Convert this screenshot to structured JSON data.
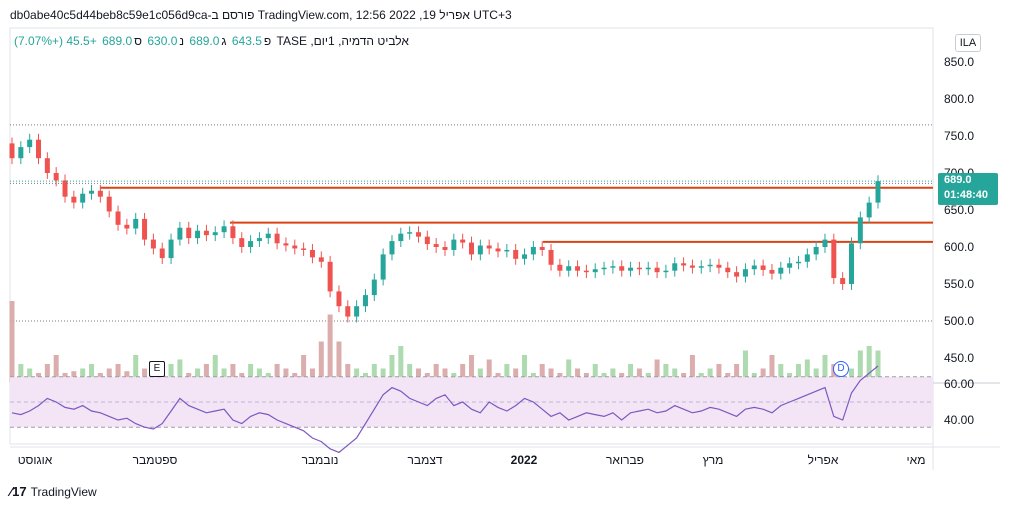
{
  "header": {
    "title": "db0abe40c5d44beb8c59e1c056d9ca-פורסם ב TradingView.com, 12:56 2022 ,אפריל 19 UTC+3"
  },
  "legend": {
    "name": "אלביט הדמיה, 1יום, TASE",
    "o_label": "פ",
    "o_val": "643.5",
    "h_label": "ג",
    "h_val": "689.0",
    "l_label": "נ",
    "l_val": "630.0",
    "c_label": "ס",
    "c_val": "689.0",
    "change": "+45.5 (+7.07%)"
  },
  "symbol_box": "ILA",
  "price_tag": {
    "price": "689.0",
    "countdown": "01:48:40"
  },
  "markers": {
    "earnings": "E",
    "dividend": "D"
  },
  "footer": {
    "brand": "TradingView"
  },
  "colors": {
    "up": "#26a69a",
    "down": "#ef5350",
    "level": "#d84315",
    "rsi": "#7e57c2",
    "rsi_band": "#f3e5f5"
  },
  "chart_data": {
    "type": "candlestick",
    "price_axis_ticks": [
      850,
      800,
      750,
      700,
      650,
      600,
      550,
      500,
      450
    ],
    "price_axis_labels": [
      "850.0",
      "800.0",
      "750.0",
      "700.0",
      "650.0",
      "600.0",
      "550.0",
      "500.0",
      "450.0"
    ],
    "rsi_axis_labels": [
      "60.00",
      "40.00"
    ],
    "time_axis_labels": [
      "אוגוסט",
      "ספטמבר",
      "נובמבר",
      "דצמבר",
      "2022",
      "פברואר",
      "מרץ",
      "אפריל",
      "מאי"
    ],
    "horizontal_levels": [
      680,
      633,
      607
    ],
    "dotted_levels": [
      765,
      686,
      500
    ],
    "last_close": 689.0,
    "close_path": [
      720,
      735,
      745,
      720,
      700,
      690,
      668,
      660,
      672,
      676,
      668,
      648,
      630,
      625,
      638,
      610,
      598,
      585,
      610,
      626,
      612,
      622,
      616,
      620,
      628,
      612,
      600,
      608,
      612,
      618,
      605,
      602,
      598,
      596,
      586,
      580,
      540,
      520,
      506,
      520,
      535,
      556,
      590,
      608,
      618,
      620,
      614,
      604,
      600,
      596,
      610,
      606,
      590,
      602,
      598,
      594,
      596,
      584,
      590,
      600,
      596,
      576,
      568,
      574,
      568,
      566,
      570,
      572,
      574,
      568,
      572,
      570,
      572,
      566,
      568,
      578,
      575,
      572,
      574,
      576,
      572,
      566,
      560,
      570,
      575,
      569,
      564,
      572,
      578,
      580,
      590,
      600,
      610,
      558,
      550,
      605,
      640,
      660,
      689
    ],
    "volume_relative": [
      0.9,
      0.2,
      0.15,
      0.1,
      0.2,
      0.3,
      0.1,
      0.12,
      0.15,
      0.2,
      0.1,
      0.15,
      0.2,
      0.12,
      0.3,
      0.15,
      0.2,
      0.1,
      0.2,
      0.25,
      0.1,
      0.15,
      0.2,
      0.3,
      0.15,
      0.2,
      0.1,
      0.2,
      0.15,
      0.1,
      0.2,
      0.15,
      0.1,
      0.3,
      0.15,
      0.45,
      0.75,
      0.45,
      0.2,
      0.15,
      0.1,
      0.2,
      0.15,
      0.3,
      0.4,
      0.2,
      0.15,
      0.1,
      0.2,
      0.15,
      0.1,
      0.2,
      0.3,
      0.15,
      0.25,
      0.1,
      0.2,
      0.15,
      0.3,
      0.1,
      0.2,
      0.15,
      0.1,
      0.25,
      0.15,
      0.1,
      0.2,
      0.1,
      0.15,
      0.1,
      0.2,
      0.15,
      0.1,
      0.25,
      0.2,
      0.15,
      0.1,
      0.3,
      0.1,
      0.15,
      0.2,
      0.1,
      0.2,
      0.35,
      0.1,
      0.15,
      0.3,
      0.2,
      0.1,
      0.2,
      0.25,
      0.15,
      0.3,
      0.2,
      0.1,
      0.15,
      0.35,
      0.4,
      0.35
    ],
    "rsi_values": [
      44,
      43,
      45,
      48,
      52,
      50,
      47,
      46,
      48,
      45,
      44,
      42,
      40,
      41,
      38,
      36,
      35,
      38,
      45,
      52,
      48,
      46,
      44,
      45,
      46,
      40,
      38,
      42,
      44,
      43,
      40,
      38,
      36,
      34,
      30,
      28,
      24,
      22,
      26,
      30,
      38,
      46,
      54,
      58,
      56,
      52,
      50,
      48,
      52,
      54,
      48,
      50,
      46,
      44,
      50,
      47,
      45,
      48,
      52,
      50,
      46,
      42,
      44,
      40,
      42,
      44,
      43,
      42,
      44,
      40,
      44,
      45,
      46,
      44,
      45,
      48,
      46,
      44,
      45,
      47,
      46,
      44,
      42,
      46,
      47,
      46,
      44,
      48,
      50,
      52,
      54,
      56,
      58,
      42,
      40,
      55,
      62,
      66,
      70
    ]
  }
}
